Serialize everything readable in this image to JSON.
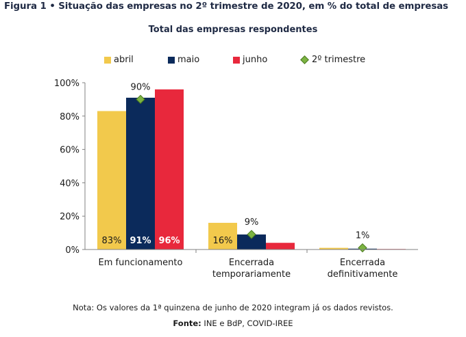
{
  "figure": {
    "title": "Figura 1 • Situação das empresas no 2º trimestre de 2020, em % do total de empresas",
    "subtitle": "Total das empresas respondentes",
    "note": "Nota: Os valores da 1ª quinzena de junho de 2020 integram já os dados revistos.",
    "source_label": "Fonte:",
    "source_text": " INE e BdP, COVID-IREE"
  },
  "legend": {
    "abril": "abril",
    "maio": "maio",
    "junho": "junho",
    "trimestre": "2º trimestre"
  },
  "colors": {
    "abril": "#f2c94c",
    "maio": "#0b2a5b",
    "junho": "#e8283c",
    "trimestre": "#7cb342"
  },
  "chart_data": {
    "type": "bar",
    "categories": [
      "Em funcionamento",
      "Encerrada|temporariamente",
      "Encerrada|definitivamente"
    ],
    "series": [
      {
        "name": "abril",
        "values": [
          83,
          16,
          1
        ]
      },
      {
        "name": "maio",
        "values": [
          91,
          9,
          0.5
        ]
      },
      {
        "name": "junho",
        "values": [
          96,
          4,
          0.3
        ]
      }
    ],
    "quarter_series": {
      "name": "2º trimestre",
      "values": [
        90,
        9,
        1
      ]
    },
    "bar_labels": [
      {
        "category": 0,
        "series": 0,
        "text": "83%"
      },
      {
        "category": 0,
        "series": 1,
        "text": "91%"
      },
      {
        "category": 0,
        "series": 2,
        "text": "96%"
      },
      {
        "category": 1,
        "series": 0,
        "text": "16%"
      }
    ],
    "marker_labels": [
      "90%",
      "9%",
      "1%"
    ],
    "yticks": [
      "0%",
      "20%",
      "40%",
      "60%",
      "80%",
      "100%"
    ],
    "ylim": [
      0,
      100
    ],
    "grid": false,
    "legend_position": "top"
  }
}
